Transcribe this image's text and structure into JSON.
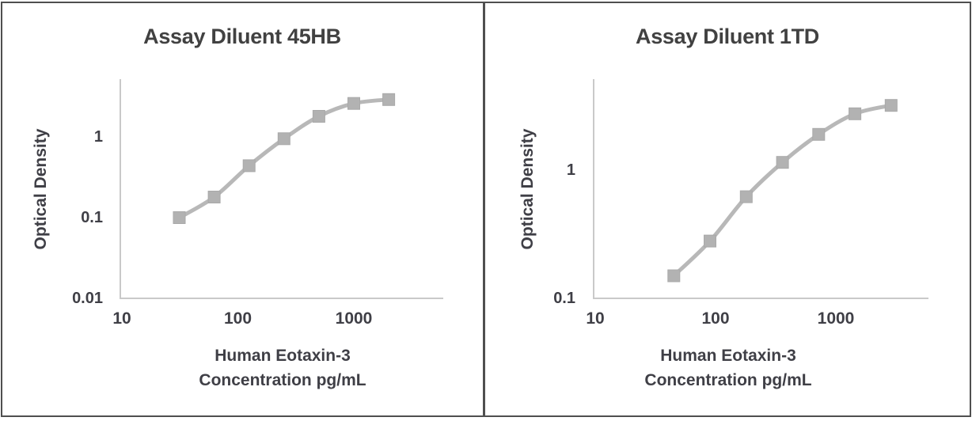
{
  "figure": {
    "background": "#ffffff",
    "border_color": "#4f4f4f",
    "axis_line_color": "#c9c9c9",
    "title_color": "#414141",
    "tick_text_color": "#3f3f46"
  },
  "chart_data": [
    {
      "type": "scatter",
      "subtype": "smooth-line-with-square-markers",
      "title": "Assay Diluent 45HB",
      "ylabel": "Optical Density",
      "xlabel_line1": "Human Eotaxin-3",
      "xlabel_line2": "Concentration pg/mL",
      "x_scale": "log",
      "y_scale": "log",
      "grid": false,
      "legend": "none",
      "x_ticks": [
        10,
        100,
        1000
      ],
      "y_ticks": [
        1,
        0.1,
        0.01
      ],
      "xlim": [
        10,
        5600
      ],
      "ylim": [
        0.01,
        5.2
      ],
      "x": [
        31.25,
        62.5,
        125,
        250,
        500,
        1000,
        2000
      ],
      "y": [
        0.1,
        0.18,
        0.44,
        0.95,
        1.8,
        2.6,
        2.9
      ],
      "series_color": "#b8b8b8",
      "marker_color": "#b2b2b2",
      "marker_edge_color": "#a9a9a9"
    },
    {
      "type": "scatter",
      "subtype": "smooth-line-with-square-markers",
      "title": "Assay Diluent 1TD",
      "ylabel": "Optical Density",
      "xlabel_line1": "Human Eotaxin-3",
      "xlabel_line2": "Concentration pg/mL",
      "x_scale": "log",
      "y_scale": "log",
      "grid": false,
      "legend": "none",
      "x_ticks": [
        10,
        100,
        1000
      ],
      "y_ticks": [
        1,
        0.1
      ],
      "xlim": [
        10,
        5900
      ],
      "ylim": [
        0.1,
        5.1
      ],
      "x": [
        45,
        90,
        180,
        360,
        720,
        1440,
        2880
      ],
      "y": [
        0.15,
        0.28,
        0.62,
        1.15,
        1.9,
        2.75,
        3.2
      ],
      "series_color": "#b8b8b8",
      "marker_color": "#b2b2b2",
      "marker_edge_color": "#a9a9a9"
    }
  ]
}
